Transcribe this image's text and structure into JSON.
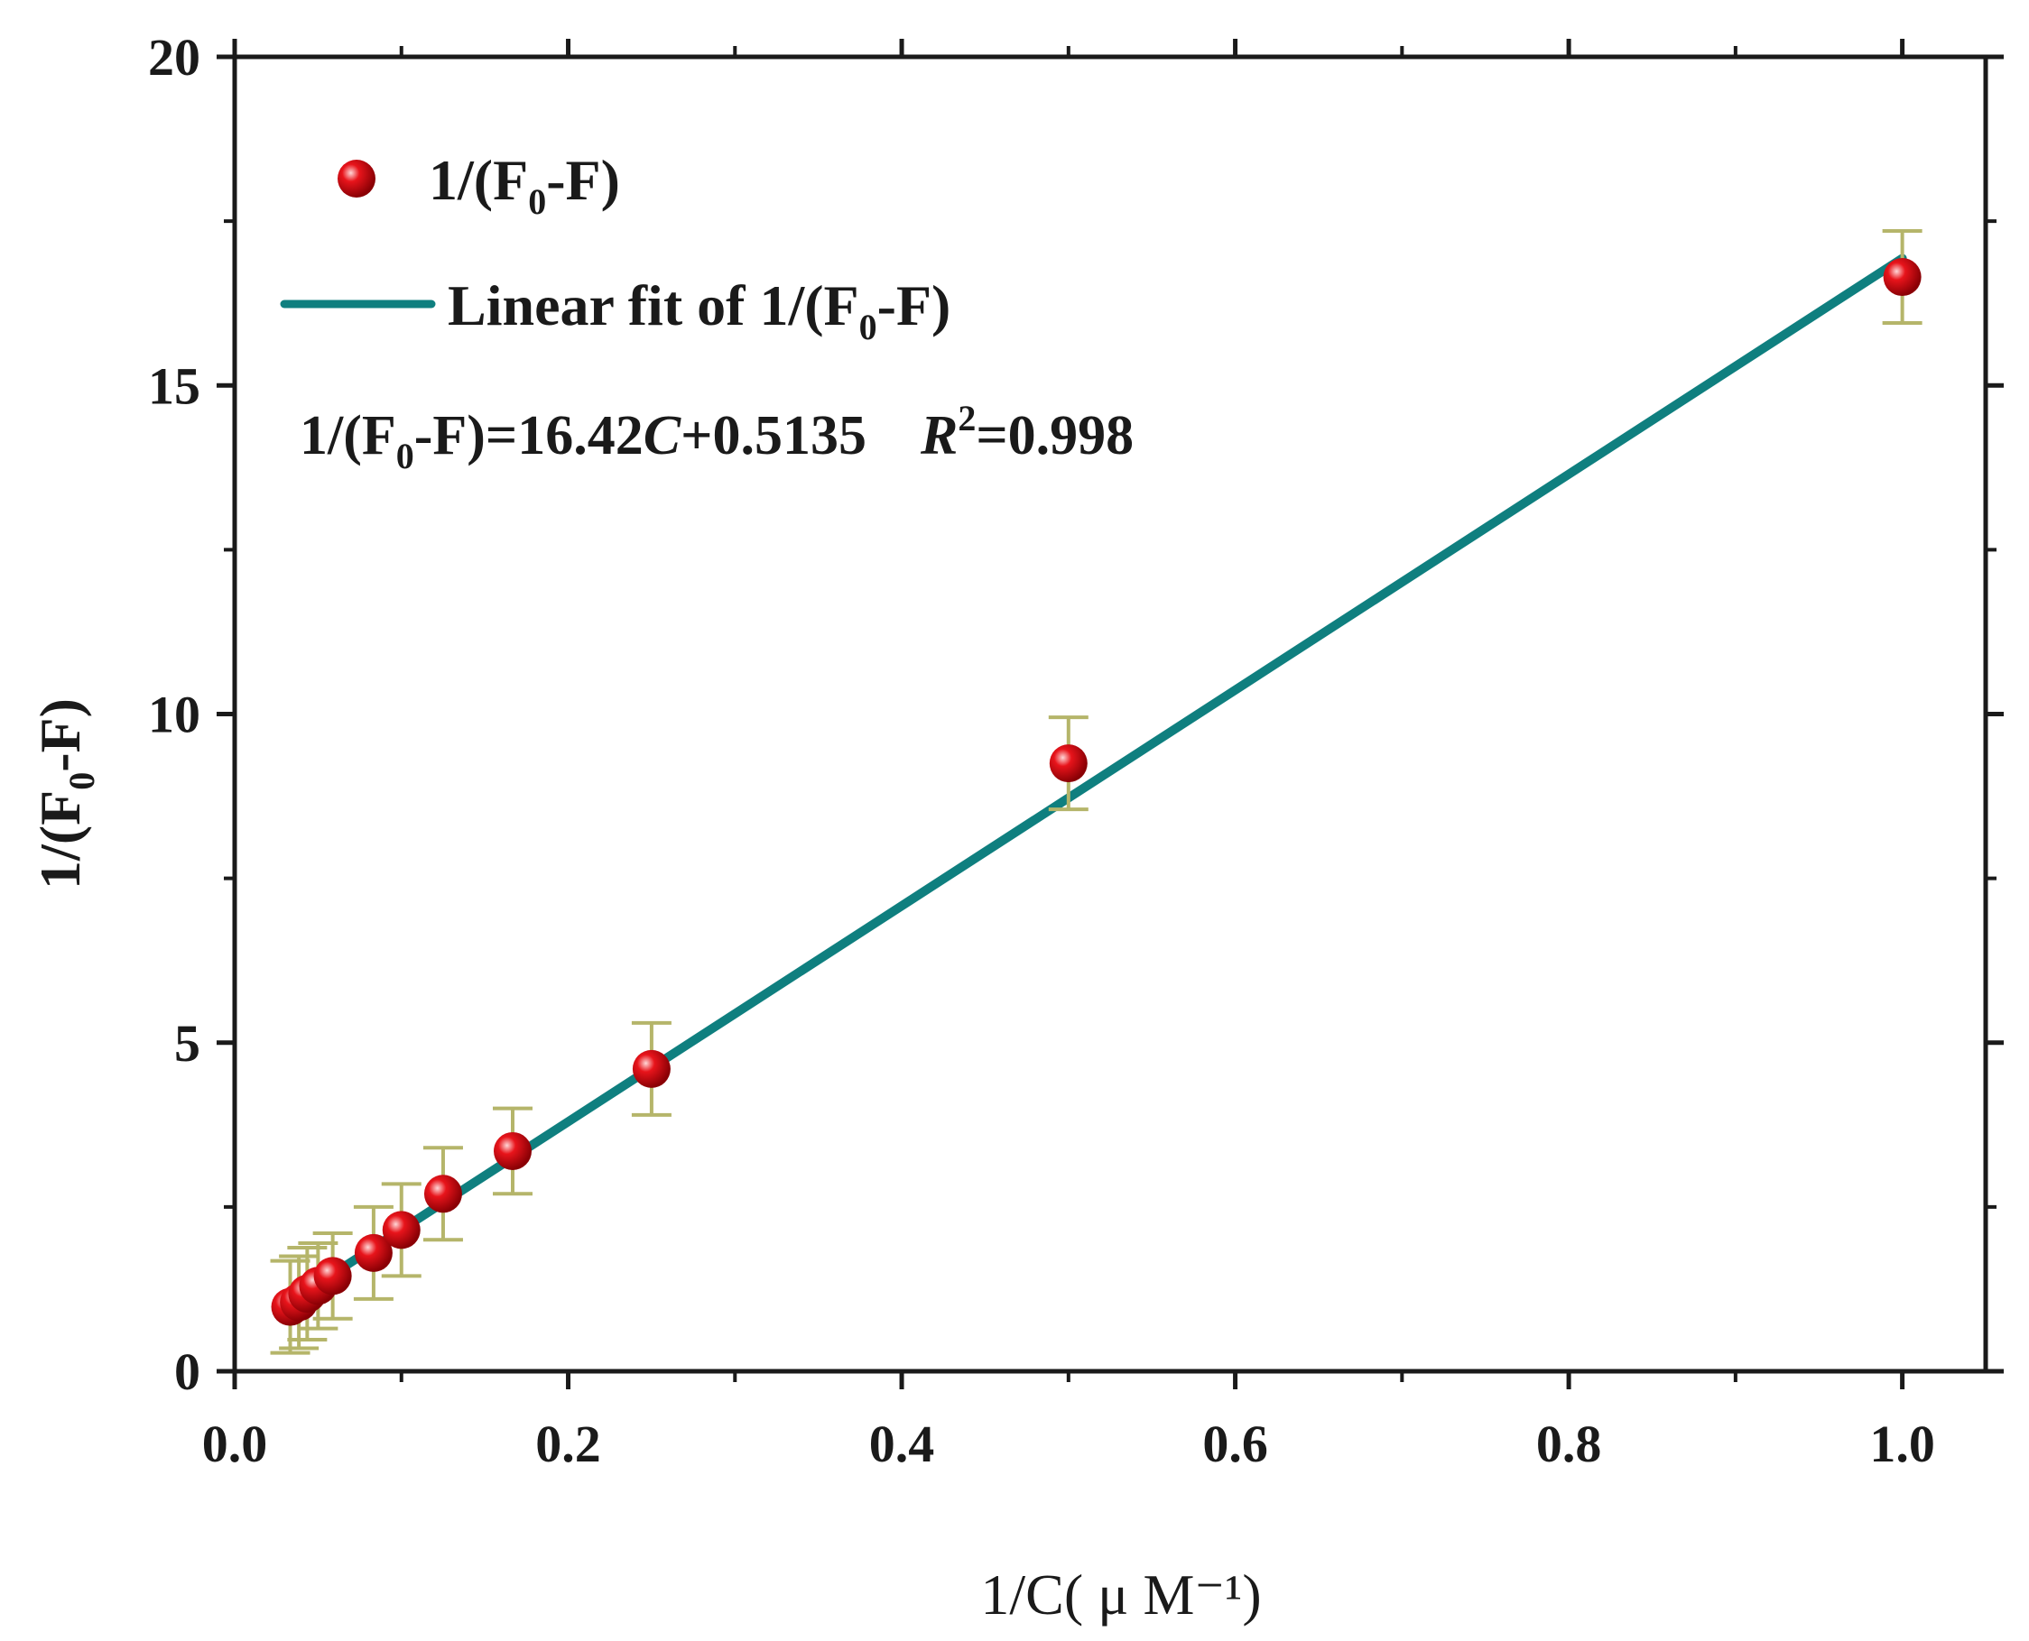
{
  "chart_data": {
    "type": "scatter",
    "title": "",
    "xlabel": "1/C( μ M⁻¹)",
    "ylabel": {
      "prefix": "1/(F",
      "sub": "0",
      "suffix": "-F)"
    },
    "xlim": [
      0.0,
      1.05
    ],
    "ylim": [
      0,
      20
    ],
    "xticks": [
      0.0,
      0.2,
      0.4,
      0.6,
      0.8,
      1.0
    ],
    "xtick_labels": [
      "0.0",
      "0.2",
      "0.4",
      "0.6",
      "0.8",
      "1.0"
    ],
    "yticks": [
      0,
      5,
      10,
      15,
      20
    ],
    "ytick_labels": [
      "0",
      "5",
      "10",
      "15",
      "20"
    ],
    "grid": false,
    "legend_position": "top-left",
    "series": [
      {
        "name": "1/(F0-F)",
        "legend_label": {
          "prefix": "1/(F",
          "sub": "0",
          "suffix": "-F)"
        },
        "kind": "scatter",
        "color": "#e8141b",
        "x": [
          0.0333,
          0.0385,
          0.0435,
          0.05,
          0.0588,
          0.0833,
          0.1,
          0.125,
          0.1667,
          0.25,
          0.5,
          1.0
        ],
        "y": [
          0.98,
          1.05,
          1.18,
          1.3,
          1.45,
          1.8,
          2.15,
          2.7,
          3.35,
          4.6,
          9.25,
          16.65
        ],
        "error": [
          0.7,
          0.7,
          0.7,
          0.65,
          0.65,
          0.7,
          0.7,
          0.7,
          0.65,
          0.7,
          0.7,
          0.7
        ]
      },
      {
        "name": "Linear fit of 1/(F0-F)",
        "legend_label": {
          "prefix": "Linear fit of 1/(F",
          "sub": "0",
          "suffix": "-F)"
        },
        "kind": "line",
        "color": "#0f7f7f",
        "slope": 16.42,
        "intercept": 0.5135,
        "x_range": [
          0.0333,
          1.0
        ]
      }
    ],
    "annotation": {
      "eq_prefix": "1/(F",
      "eq_sub": "0",
      "eq_mid": "-F)=16.42",
      "eq_var": "C",
      "eq_tail": "+0.5135",
      "r_label": "R",
      "r_sup": "2",
      "r_value": "=0.998"
    },
    "errorbar_color": "#b5b56a"
  }
}
